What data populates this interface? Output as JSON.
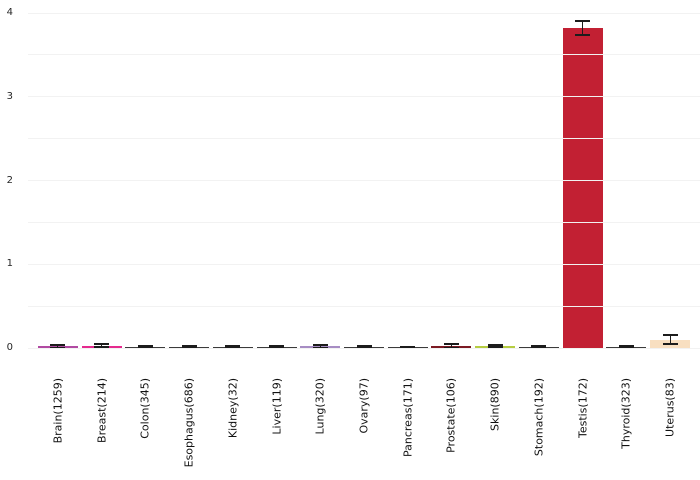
{
  "chart_data": {
    "type": "bar",
    "title": "",
    "xlabel": "",
    "ylabel": "",
    "ylim": [
      0,
      4
    ],
    "ytick_labels": [
      "0",
      "1",
      "2",
      "3",
      "4"
    ],
    "gridline_step": 0.5,
    "grid_on": true,
    "legend": "none",
    "background_color": "#ffffff",
    "grid_color": "#f2f2f2",
    "tick_label_color": "#262626",
    "error_bar_color": "#1c1c1c",
    "categories": [
      "Brain(1259)",
      "Breast(214)",
      "Colon(345)",
      "Esophagus(686)",
      "Kidney(32)",
      "Liver(119)",
      "Lung(320)",
      "Ovary(97)",
      "Pancreas(171)",
      "Prostate(106)",
      "Skin(890)",
      "Stomach(192)",
      "Testis(172)",
      "Thyroid(323)",
      "Uterus(83)"
    ],
    "sample_counts": [
      1259,
      214,
      345,
      686,
      32,
      119,
      320,
      97,
      171,
      106,
      890,
      192,
      172,
      323,
      83
    ],
    "values": [
      0.02,
      0.03,
      0.01,
      0.01,
      0.01,
      0.01,
      0.02,
      0.01,
      0.008,
      0.025,
      0.02,
      0.01,
      3.82,
      0.015,
      0.1
    ],
    "errors": [
      0.015,
      0.02,
      0.01,
      0.01,
      0.01,
      0.01,
      0.015,
      0.01,
      0.008,
      0.02,
      0.012,
      0.01,
      0.08,
      0.01,
      0.05
    ],
    "bar_colors": [
      "#b14aa2",
      "#e52a8e",
      "#3b3b3b",
      "#3b3b3b",
      "#3b3b3b",
      "#3b3b3b",
      "#a78dc4",
      "#3b3b3b",
      "#3b3b3b",
      "#7c1a23",
      "#b6cd42",
      "#3b3b3b",
      "#c22033",
      "#3b3b3b",
      "#f8dfc1"
    ]
  }
}
